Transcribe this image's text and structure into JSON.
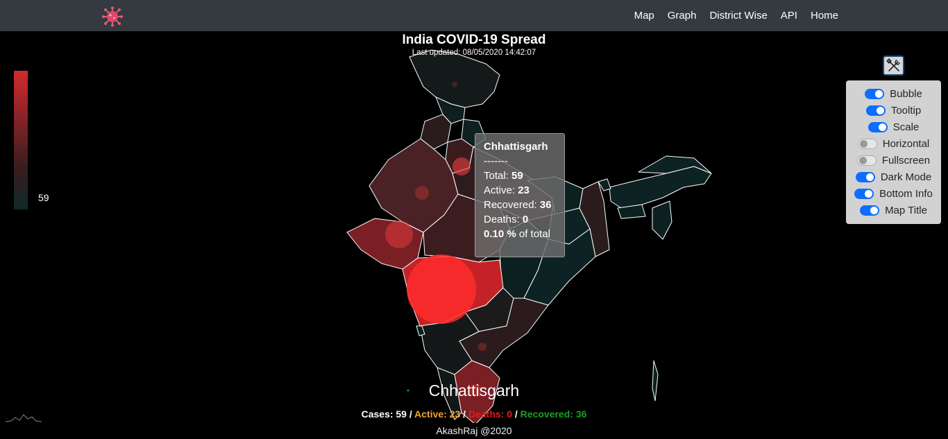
{
  "navbar": {
    "logo_icon": "virus-icon",
    "links": [
      "Map",
      "Graph",
      "District Wise",
      "API",
      "Home"
    ]
  },
  "map": {
    "title": "India COVID-19 Spread",
    "last_updated": "Last updated: 08/05/2020 14:42:07"
  },
  "legend": {
    "value": "59",
    "color_high": "#d22a2d",
    "color_low": "#0d2a2a"
  },
  "tooltip": {
    "state": "Chhattisgarh",
    "separator": "-------",
    "total_label": "Total: ",
    "total": "59",
    "active_label": "Active: ",
    "active": "23",
    "recovered_label": "Recovered: ",
    "recovered": "36",
    "deaths_label": "Deaths: ",
    "deaths": "0",
    "percent": "0.10 %",
    "percent_suffix": " of total"
  },
  "settings": {
    "button_icon": "tools-icon",
    "options": [
      {
        "label": "Bubble",
        "on": true
      },
      {
        "label": "Tooltip",
        "on": true
      },
      {
        "label": "Scale",
        "on": true
      },
      {
        "label": "Horizontal",
        "on": false
      },
      {
        "label": "Fullscreen",
        "on": false
      },
      {
        "label": "Dark Mode",
        "on": true
      },
      {
        "label": "Bottom Info",
        "on": true
      },
      {
        "label": "Map Title",
        "on": true
      }
    ]
  },
  "bottom_info": {
    "state": "Chhattisgarh",
    "cases": "Cases: 59",
    "sep": " / ",
    "active": "Active: 23",
    "deaths": "Deaths: 0",
    "recovered": "Recovered: 36",
    "credit": "AkashRaj @2020"
  },
  "colors": {
    "navbar": "#343a40",
    "active": "#f5a623",
    "deaths": "#e01d1d",
    "recovered": "#1aa123",
    "toggle_on": "#0d6efd"
  }
}
